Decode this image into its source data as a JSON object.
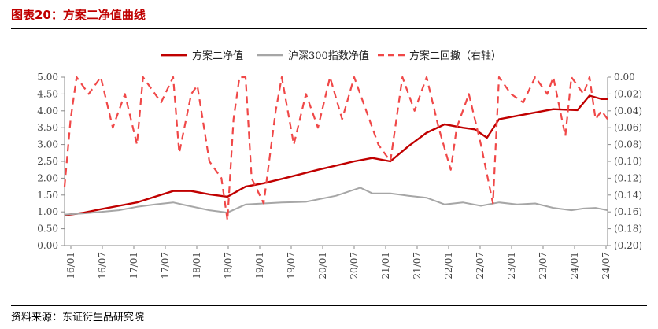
{
  "header": {
    "title": "图表20：方案二净值曲线"
  },
  "footer": {
    "source": "资料来源：东证衍生品研究院"
  },
  "colors": {
    "strategy": "#c00000",
    "benchmark": "#a6a6a6",
    "drawdown": "#f04848"
  },
  "chart_data": {
    "type": "line",
    "legend_position": "top",
    "x_tick_labels": [
      "16/01",
      "16/07",
      "17/01",
      "17/07",
      "18/01",
      "18/07",
      "19/01",
      "19/07",
      "20/01",
      "20/07",
      "21/01",
      "21/07",
      "22/01",
      "22/07",
      "23/01",
      "23/07",
      "24/01",
      "24/07"
    ],
    "y_left": {
      "range": [
        0,
        5
      ],
      "tick_labels": [
        "5.00",
        "4.50",
        "4.00",
        "3.50",
        "3.00",
        "2.50",
        "2.00",
        "1.50",
        "1.00",
        "0.50",
        "0.00"
      ]
    },
    "y_right": {
      "range": [
        0,
        -0.2
      ],
      "tick_labels": [
        "0.00",
        "(0.02)",
        "(0.04)",
        "(0.06)",
        "(0.08)",
        "(0.10)",
        "(0.12)",
        "(0.14)",
        "(0.16)",
        "(0.18)",
        "(0.20)"
      ]
    },
    "series": [
      {
        "name": "方案二净值",
        "axis": "left",
        "style": "solid",
        "points": [
          [
            0,
            0.9
          ],
          [
            3,
            0.97
          ],
          [
            6,
            1.08
          ],
          [
            9,
            1.18
          ],
          [
            12,
            1.28
          ],
          [
            15,
            1.45
          ],
          [
            18,
            1.62
          ],
          [
            21,
            1.62
          ],
          [
            24,
            1.52
          ],
          [
            27,
            1.45
          ],
          [
            30,
            1.75
          ],
          [
            33,
            1.85
          ],
          [
            36,
            1.98
          ],
          [
            42,
            2.25
          ],
          [
            48,
            2.5
          ],
          [
            51,
            2.6
          ],
          [
            54,
            2.5
          ],
          [
            57,
            2.95
          ],
          [
            60,
            3.35
          ],
          [
            63,
            3.6
          ],
          [
            66,
            3.5
          ],
          [
            68,
            3.45
          ],
          [
            70,
            3.2
          ],
          [
            72,
            3.75
          ],
          [
            75,
            3.85
          ],
          [
            78,
            3.95
          ],
          [
            81,
            4.05
          ],
          [
            85,
            4.02
          ],
          [
            87,
            4.45
          ],
          [
            89,
            4.35
          ],
          [
            90,
            4.35
          ]
        ]
      },
      {
        "name": "沪深300指数净值",
        "axis": "left",
        "style": "solid",
        "points": [
          [
            0,
            0.92
          ],
          [
            3,
            0.95
          ],
          [
            6,
            1.0
          ],
          [
            9,
            1.05
          ],
          [
            12,
            1.15
          ],
          [
            15,
            1.22
          ],
          [
            18,
            1.28
          ],
          [
            20,
            1.2
          ],
          [
            24,
            1.05
          ],
          [
            27,
            0.98
          ],
          [
            30,
            1.22
          ],
          [
            33,
            1.25
          ],
          [
            36,
            1.28
          ],
          [
            40,
            1.3
          ],
          [
            45,
            1.48
          ],
          [
            49,
            1.72
          ],
          [
            51,
            1.55
          ],
          [
            54,
            1.55
          ],
          [
            57,
            1.48
          ],
          [
            60,
            1.42
          ],
          [
            63,
            1.22
          ],
          [
            66,
            1.28
          ],
          [
            69,
            1.18
          ],
          [
            72,
            1.28
          ],
          [
            75,
            1.22
          ],
          [
            78,
            1.25
          ],
          [
            81,
            1.12
          ],
          [
            84,
            1.05
          ],
          [
            86,
            1.1
          ],
          [
            88,
            1.12
          ],
          [
            90,
            1.05
          ]
        ]
      },
      {
        "name": "方案二回撤（右轴）",
        "axis": "right",
        "style": "dashed",
        "points": [
          [
            0,
            -0.13
          ],
          [
            1,
            -0.05
          ],
          [
            2,
            0.0
          ],
          [
            4,
            -0.02
          ],
          [
            6,
            0.0
          ],
          [
            8,
            -0.06
          ],
          [
            10,
            -0.02
          ],
          [
            12,
            -0.08
          ],
          [
            13,
            0.0
          ],
          [
            16,
            -0.03
          ],
          [
            18,
            0.0
          ],
          [
            19,
            -0.09
          ],
          [
            21,
            -0.02
          ],
          [
            22,
            -0.01
          ],
          [
            24,
            -0.1
          ],
          [
            26,
            -0.12
          ],
          [
            27,
            -0.17
          ],
          [
            28,
            -0.05
          ],
          [
            29,
            0.0
          ],
          [
            30,
            0.0
          ],
          [
            31,
            -0.12
          ],
          [
            33,
            -0.15
          ],
          [
            35,
            -0.04
          ],
          [
            36,
            0.0
          ],
          [
            38,
            -0.08
          ],
          [
            40,
            -0.02
          ],
          [
            42,
            -0.06
          ],
          [
            44,
            0.0
          ],
          [
            46,
            -0.05
          ],
          [
            48,
            0.0
          ],
          [
            50,
            -0.04
          ],
          [
            52,
            -0.08
          ],
          [
            54,
            -0.1
          ],
          [
            56,
            0.0
          ],
          [
            58,
            -0.04
          ],
          [
            60,
            0.0
          ],
          [
            62,
            -0.06
          ],
          [
            64,
            -0.11
          ],
          [
            65,
            -0.06
          ],
          [
            67,
            -0.02
          ],
          [
            69,
            -0.08
          ],
          [
            71,
            -0.15
          ],
          [
            72,
            0.0
          ],
          [
            74,
            -0.02
          ],
          [
            76,
            -0.03
          ],
          [
            78,
            0.0
          ],
          [
            80,
            -0.02
          ],
          [
            81,
            0.0
          ],
          [
            83,
            -0.07
          ],
          [
            84,
            0.0
          ],
          [
            86,
            -0.02
          ],
          [
            87,
            0.0
          ],
          [
            88,
            -0.05
          ],
          [
            89,
            -0.04
          ],
          [
            90,
            -0.05
          ]
        ]
      }
    ]
  }
}
